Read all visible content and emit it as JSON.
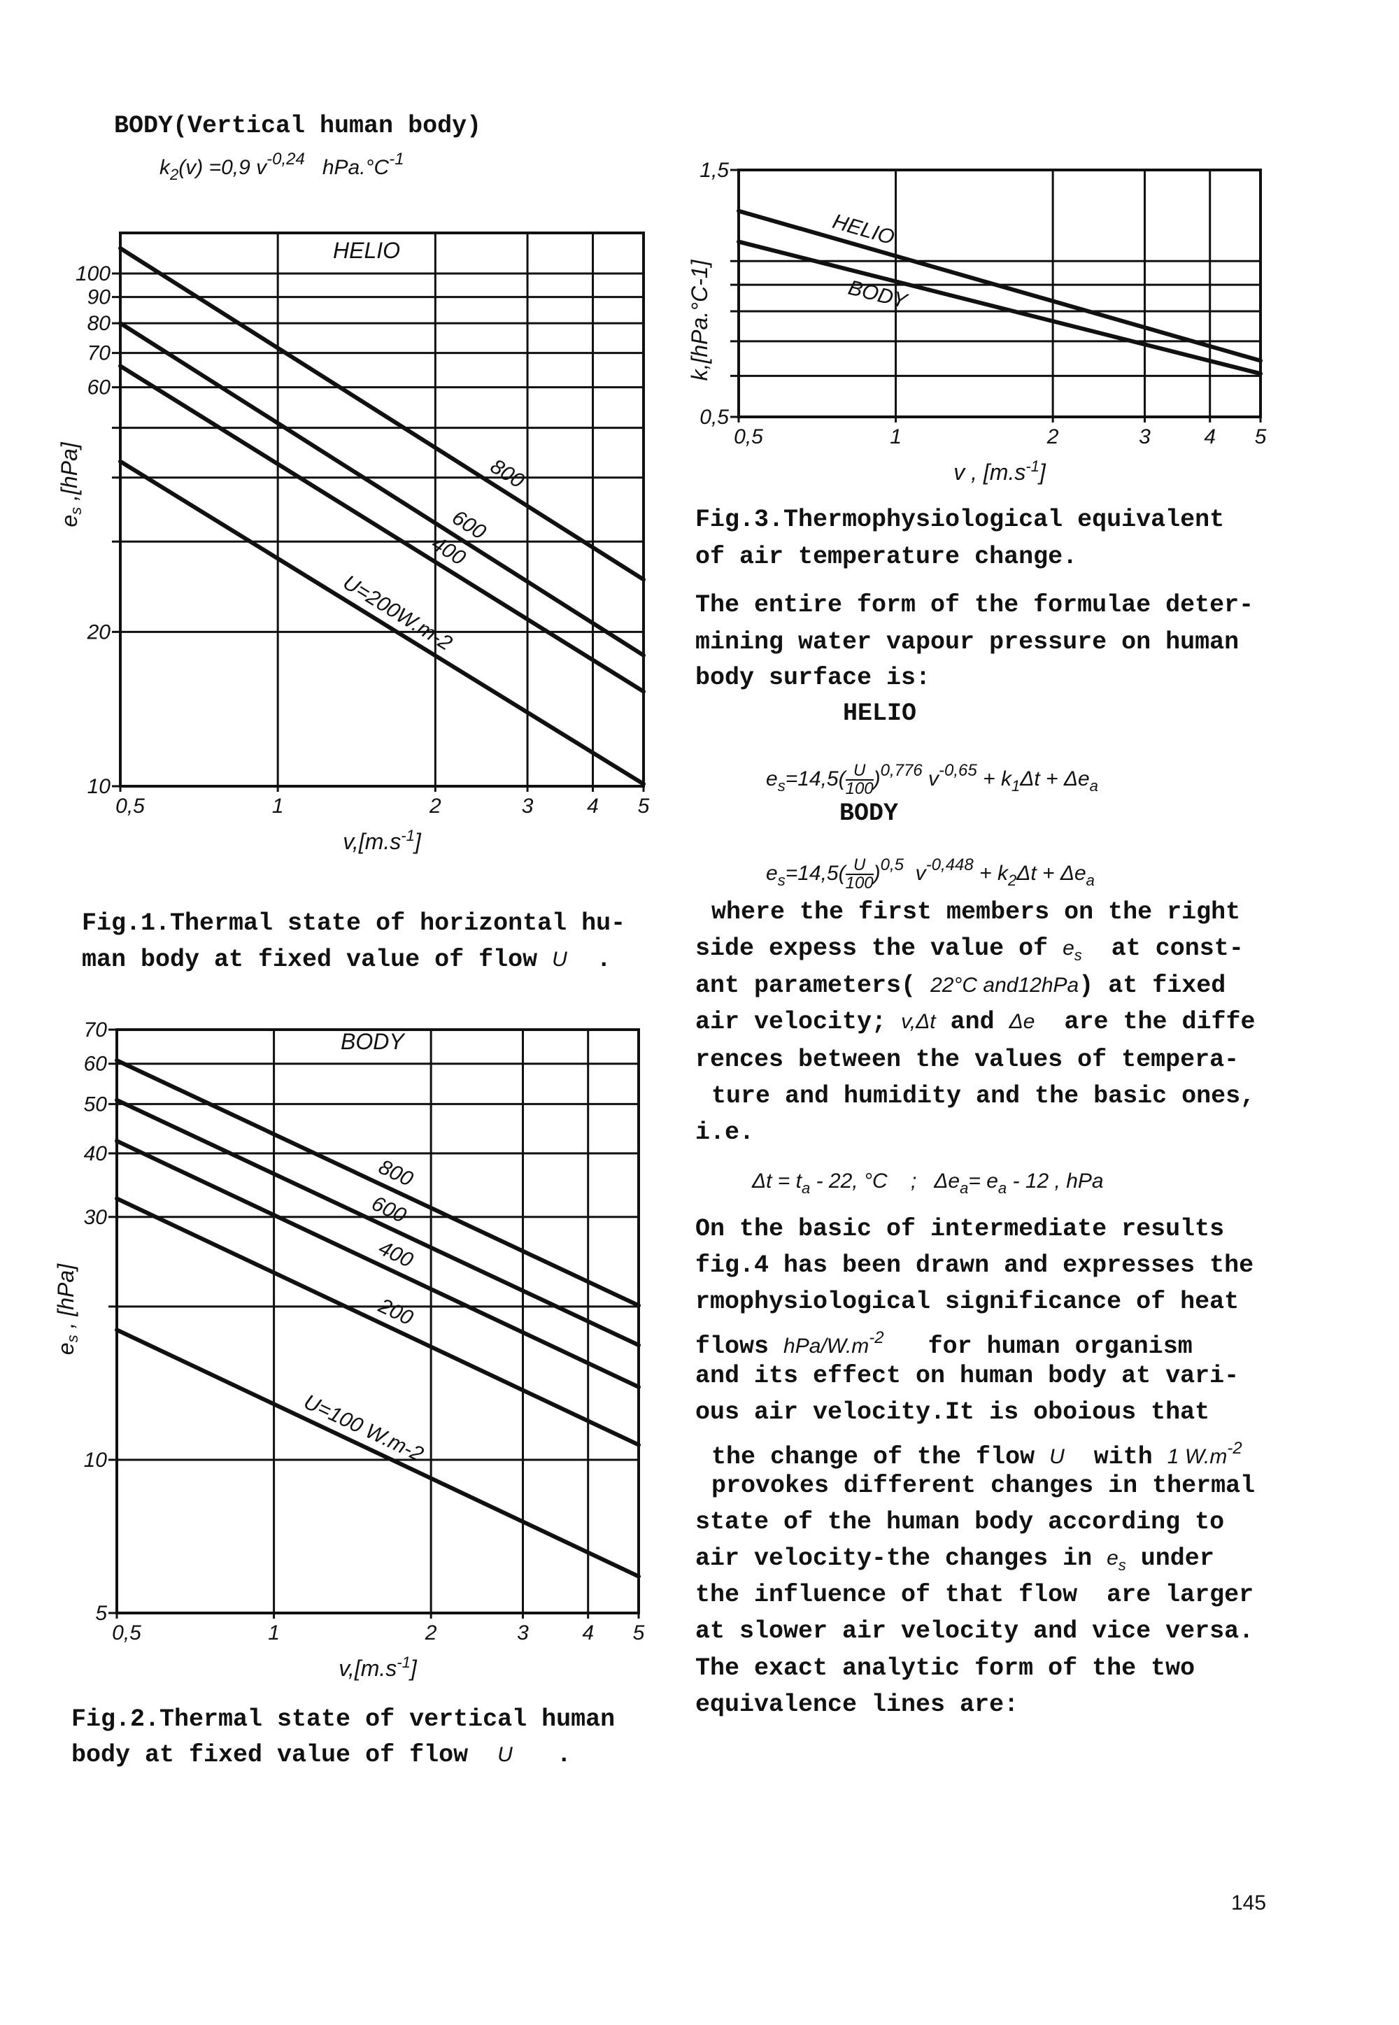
{
  "left_column": {
    "title": [
      "BODY(Vertical human body)"
    ],
    "formula": [
      {
        "t": "k",
        "s": "m"
      },
      {
        "t": "2",
        "s": "sub"
      },
      {
        "t": "(v) =0,9 v",
        "s": "m"
      },
      {
        "t": "-0,24",
        "s": "sup"
      },
      {
        "t": "   hPa.°C",
        "s": "m"
      },
      {
        "t": "-1",
        "s": "sup"
      }
    ],
    "fig1_caption": [
      [
        "Fig.1.Thermal state of horizontal hu-"
      ],
      [
        "man body at fixed value of flow ",
        {
          "t": "U",
          "s": "m"
        },
        "  ."
      ]
    ],
    "fig2_caption": [
      [
        "Fig.2.Thermal state of vertical human"
      ],
      [
        "body at fixed value of flow  ",
        {
          "t": "U",
          "s": "m"
        },
        "   ."
      ]
    ]
  },
  "right_column": {
    "fig3_caption": [
      [
        "Fig.3.Thermophysiological equivalent"
      ],
      [
        "of air temperature change."
      ]
    ],
    "paragraph1": [
      [
        "The entire form of the formulae deter-"
      ],
      [
        "mining water vapour pressure on human"
      ],
      [
        "body surface is:"
      ]
    ],
    "helio_label": [
      "HELIO"
    ],
    "helio_equation": [
      {
        "t": "e",
        "s": "m"
      },
      {
        "t": "s",
        "s": "sub"
      },
      {
        "t": "=14,5(",
        "s": "m"
      },
      {
        "s": "frac",
        "n": "U",
        "d": "100"
      },
      {
        "t": ")",
        "s": "m"
      },
      {
        "t": "0,776",
        "s": "sup"
      },
      {
        "t": " v",
        "s": "m"
      },
      {
        "t": "-0,65",
        "s": "sup"
      },
      {
        "t": " + k",
        "s": "m"
      },
      {
        "t": "1",
        "s": "sub"
      },
      {
        "t": "Δt + Δe",
        "s": "m"
      },
      {
        "t": "a",
        "s": "sub"
      }
    ],
    "body_label": [
      "BODY"
    ],
    "body_equation": [
      {
        "t": "e",
        "s": "m"
      },
      {
        "t": "s",
        "s": "sub"
      },
      {
        "t": "=14,5(",
        "s": "m"
      },
      {
        "s": "frac",
        "n": "U",
        "d": "100"
      },
      {
        "t": ")",
        "s": "m"
      },
      {
        "t": "0,5",
        "s": "sup"
      },
      {
        "t": "  v",
        "s": "m"
      },
      {
        "t": "-0,448",
        "s": "sup"
      },
      {
        "t": " + k",
        "s": "m"
      },
      {
        "t": "2",
        "s": "sub"
      },
      {
        "t": "Δt + Δe",
        "s": "m"
      },
      {
        "t": "a",
        "s": "sub"
      }
    ],
    "paragraph2": [
      [
        "where the first members on the right"
      ],
      [
        "side expess the value of ",
        {
          "t": "e",
          "s": "m"
        },
        {
          "t": "s",
          "s": "sub"
        },
        "  at const-"
      ],
      [
        "ant parameters( ",
        {
          "t": "22°C and12hPa",
          "s": "m"
        },
        ") at fixed"
      ],
      [
        "air velocity; ",
        {
          "t": "v,Δt",
          "s": "m"
        },
        " and ",
        {
          "t": "Δe",
          "s": "m"
        },
        "  are the diffe"
      ],
      [
        "rences between the values of tempera-"
      ],
      [
        "ture and humidity and the basic ones,"
      ],
      [
        "i.e."
      ]
    ],
    "difference_equations": [
      {
        "t": "Δt = t",
        "s": "m"
      },
      {
        "t": "a",
        "s": "sub"
      },
      {
        "t": " - 22, °C    ;   Δe",
        "s": "m"
      },
      {
        "t": "a",
        "s": "sub"
      },
      {
        "t": "= e",
        "s": "m"
      },
      {
        "t": "a",
        "s": "sub"
      },
      {
        "t": " - 12 , hPa",
        "s": "m"
      }
    ],
    "paragraph3": [
      [
        "On the basic of intermediate results"
      ],
      [
        "fig.4 has been drawn and expresses the"
      ],
      [
        "rmophysiological significance of heat"
      ],
      [
        "flows ",
        {
          "t": "hPa/W.m",
          "s": "m"
        },
        {
          "t": "-2",
          "s": "sup"
        },
        "   for human organism"
      ],
      [
        "and its effect on human body at vari-"
      ],
      [
        "ous air velocity.It is oboious that"
      ],
      [
        "the change of the flow ",
        {
          "t": "U",
          "s": "m"
        },
        "  with ",
        {
          "t": "1 W.m",
          "s": "m"
        },
        {
          "t": "-2",
          "s": "sup"
        }
      ],
      [
        "provokes different changes in thermal"
      ],
      [
        "state of the human body according to"
      ],
      [
        "air velocity-the changes in ",
        {
          "t": "e",
          "s": "m"
        },
        {
          "t": "s",
          "s": "sub"
        },
        " under"
      ],
      [
        "the influence of that flow  are larger"
      ],
      [
        "at slower air velocity and vice versa."
      ],
      [
        "The exact analytic form of the two"
      ],
      [
        "equivalence lines are:"
      ]
    ]
  },
  "page_number": "145",
  "chart_data": [
    {
      "type": "line",
      "x_scale": "log",
      "y_scale": "log",
      "xlim": [
        0.5,
        5
      ],
      "ylim": [
        10,
        120
      ],
      "grid": true,
      "x_ticks": [
        0.5,
        1,
        2,
        3,
        4,
        5
      ],
      "x_tick_labels": [
        "0,5",
        "1",
        "2",
        "3",
        "4",
        "5"
      ],
      "y_gridlines": [
        10,
        20,
        30,
        40,
        50,
        60,
        70,
        80,
        90,
        100
      ],
      "y_tick_labels": [
        {
          "v": 10,
          "label": "10"
        },
        {
          "v": 20,
          "label": "20"
        },
        {
          "v": 60,
          "label": "60"
        },
        {
          "v": 70,
          "label": "70"
        },
        {
          "v": 80,
          "label": "80"
        },
        {
          "v": 90,
          "label": "90"
        },
        {
          "v": 100,
          "label": "100"
        }
      ],
      "xlabel": [
        "v,[m.s",
        {
          "t": "-1",
          "s": "sup"
        },
        "]"
      ],
      "ylabel": [
        "e",
        {
          "t": "s",
          "s": "sub"
        },
        " ,[hPa]"
      ],
      "annotation": "HELIO",
      "series": [
        {
          "name": "800",
          "label": "800",
          "points": [
            [
              0.5,
              112
            ],
            [
              5,
              25.3
            ]
          ]
        },
        {
          "name": "600",
          "label": "600",
          "points": [
            [
              0.5,
              80
            ],
            [
              5,
              18
            ]
          ]
        },
        {
          "name": "400",
          "label": "400",
          "points": [
            [
              0.5,
              66
            ],
            [
              5,
              15.3
            ]
          ]
        },
        {
          "name": "200",
          "label": "U=200W.m-2",
          "points": [
            [
              0.5,
              43
            ],
            [
              5,
              10.1
            ]
          ]
        }
      ]
    },
    {
      "type": "line",
      "x_scale": "log",
      "y_scale": "log",
      "xlim": [
        0.5,
        5
      ],
      "ylim": [
        5,
        70
      ],
      "grid": true,
      "x_ticks": [
        0.5,
        1,
        2,
        3,
        4,
        5
      ],
      "x_tick_labels": [
        "0,5",
        "1",
        "2",
        "3",
        "4",
        "5"
      ],
      "y_gridlines": [
        5,
        10,
        20,
        30,
        40,
        50,
        60,
        70
      ],
      "y_tick_labels": [
        {
          "v": 5,
          "label": "5"
        },
        {
          "v": 10,
          "label": "10"
        },
        {
          "v": 30,
          "label": "30"
        },
        {
          "v": 40,
          "label": "40"
        },
        {
          "v": 50,
          "label": "50"
        },
        {
          "v": 60,
          "label": "60"
        },
        {
          "v": 70,
          "label": "70"
        }
      ],
      "xlabel": [
        "v,[m.s",
        {
          "t": "-1",
          "s": "sup"
        },
        "]"
      ],
      "ylabel": [
        "e",
        {
          "t": "s",
          "s": "sub"
        },
        " , [hPa]"
      ],
      "annotation": "BODY",
      "series": [
        {
          "name": "800",
          "label": "800",
          "points": [
            [
              0.5,
              60.9
            ],
            [
              5,
              20.1
            ]
          ]
        },
        {
          "name": "600",
          "label": "600",
          "points": [
            [
              0.5,
              50.9
            ],
            [
              5,
              16.8
            ]
          ]
        },
        {
          "name": "400",
          "label": "400",
          "points": [
            [
              0.5,
              42.3
            ],
            [
              5,
              13.9
            ]
          ]
        },
        {
          "name": "200",
          "label": "200",
          "points": [
            [
              0.5,
              32.6
            ],
            [
              5,
              10.7
            ]
          ]
        },
        {
          "name": "100",
          "label": "U=100 W.m-2",
          "points": [
            [
              0.5,
              18
            ],
            [
              5,
              5.9
            ]
          ]
        }
      ]
    },
    {
      "type": "line",
      "x_scale": "log",
      "y_scale": "log",
      "xlim": [
        0.5,
        5
      ],
      "ylim": [
        0.5,
        1.5
      ],
      "grid": true,
      "x_ticks": [
        0.5,
        1,
        2,
        3,
        4,
        5
      ],
      "x_tick_labels": [
        "0,5",
        "1",
        "2",
        "3",
        "4",
        "5"
      ],
      "y_gridlines": [
        0.5,
        0.6,
        0.7,
        0.8,
        0.9,
        1.0,
        1.5
      ],
      "y_tick_labels": [
        {
          "v": 0.5,
          "label": "0,5"
        },
        {
          "v": 1.5,
          "label": "1,5"
        }
      ],
      "xlabel": [
        "v , [m.s",
        {
          "t": "-1",
          "s": "sup"
        },
        "]"
      ],
      "ylabel": [
        "k,[hPa.°C-1]"
      ],
      "annotation": "",
      "series": [
        {
          "name": "HELIO",
          "label": "HELIO",
          "points": [
            [
              0.5,
              1.25
            ],
            [
              5,
              0.642
            ]
          ]
        },
        {
          "name": "BODY",
          "label": "BODY",
          "points": [
            [
              0.5,
              1.09
            ],
            [
              5,
              0.606
            ]
          ]
        }
      ]
    }
  ]
}
